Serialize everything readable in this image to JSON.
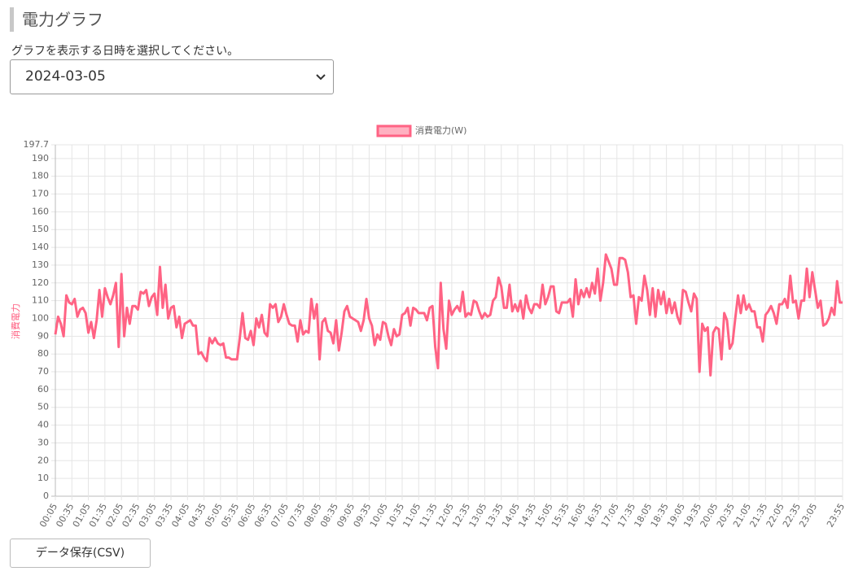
{
  "header": {
    "title": "電力グラフ"
  },
  "form": {
    "label": "グラフを表示する日時を選択してください。",
    "date": "2024-03-05"
  },
  "chart_data": {
    "type": "line",
    "y_label": "消費電力",
    "categories": [
      "00:05",
      null,
      null,
      null,
      null,
      null,
      "00:35",
      null,
      null,
      null,
      null,
      null,
      "01:05",
      null,
      null,
      null,
      null,
      null,
      "01:35",
      null,
      null,
      null,
      null,
      null,
      "02:05",
      null,
      null,
      null,
      null,
      null,
      "02:35",
      null,
      null,
      null,
      null,
      null,
      "03:05",
      null,
      null,
      null,
      null,
      null,
      "03:35",
      null,
      null,
      null,
      null,
      null,
      "04:05",
      null,
      null,
      null,
      null,
      null,
      "04:35",
      null,
      null,
      null,
      null,
      null,
      "05:05",
      null,
      null,
      null,
      null,
      null,
      "05:35",
      null,
      null,
      null,
      null,
      null,
      "06:05",
      null,
      null,
      null,
      null,
      null,
      "06:35",
      null,
      null,
      null,
      null,
      null,
      "07:05",
      null,
      null,
      null,
      null,
      null,
      "07:35",
      null,
      null,
      null,
      null,
      null,
      "08:05",
      null,
      null,
      null,
      null,
      null,
      "08:35",
      null,
      null,
      null,
      null,
      null,
      "09:05",
      null,
      null,
      null,
      null,
      null,
      "09:35",
      null,
      null,
      null,
      null,
      null,
      "10:05",
      null,
      null,
      null,
      null,
      null,
      "10:35",
      null,
      null,
      null,
      null,
      null,
      "11:05",
      null,
      null,
      null,
      null,
      null,
      "11:35",
      null,
      null,
      null,
      null,
      null,
      "12:05",
      null,
      null,
      null,
      null,
      null,
      "12:35",
      null,
      null,
      null,
      null,
      null,
      "13:05",
      null,
      null,
      null,
      null,
      null,
      "13:35",
      null,
      null,
      null,
      null,
      null,
      "14:05",
      null,
      null,
      null,
      null,
      null,
      "14:35",
      null,
      null,
      null,
      null,
      null,
      "15:05",
      null,
      null,
      null,
      null,
      null,
      "15:35",
      null,
      null,
      null,
      null,
      null,
      "16:05",
      null,
      null,
      null,
      null,
      null,
      "16:35",
      null,
      null,
      null,
      null,
      null,
      "17:05",
      null,
      null,
      null,
      null,
      null,
      "17:35",
      null,
      null,
      null,
      null,
      null,
      "18:05",
      null,
      null,
      null,
      null,
      null,
      "18:35",
      null,
      null,
      null,
      null,
      null,
      "19:05",
      null,
      null,
      null,
      null,
      null,
      "19:35",
      null,
      null,
      null,
      null,
      null,
      "20:05",
      null,
      null,
      null,
      null,
      null,
      "20:35",
      null,
      null,
      null,
      null,
      null,
      "21:05",
      null,
      null,
      null,
      null,
      null,
      "21:35",
      null,
      null,
      null,
      null,
      null,
      "22:05",
      null,
      null,
      null,
      null,
      null,
      "22:35",
      null,
      null,
      null,
      null,
      null,
      "23:05",
      null,
      null,
      null,
      null,
      null,
      null,
      null,
      null,
      null,
      "23:55"
    ],
    "series": [
      {
        "name": "消費電力(W)",
        "color": "#ff6384",
        "values": [
          91,
          101,
          97,
          90,
          113,
          109,
          108,
          111,
          101,
          105,
          106,
          103,
          92,
          98,
          89,
          99,
          116,
          101,
          117,
          112,
          108,
          113,
          120,
          84,
          125,
          90,
          106,
          97,
          107,
          107,
          105,
          115,
          114,
          116,
          107,
          112,
          114,
          102,
          129,
          106,
          119,
          100,
          106,
          107,
          95,
          101,
          89,
          97,
          98,
          99,
          96,
          96,
          80,
          81,
          78,
          76,
          89,
          86,
          89,
          86,
          85,
          86,
          78,
          78,
          77,
          77,
          77,
          89,
          103,
          89,
          88,
          93,
          85,
          100,
          95,
          102,
          92,
          90,
          108,
          106,
          108,
          98,
          101,
          108,
          102,
          97,
          96,
          96,
          87,
          99,
          91,
          93,
          92,
          111,
          100,
          108,
          77,
          98,
          100,
          93,
          92,
          86,
          99,
          82,
          92,
          104,
          107,
          101,
          100,
          99,
          98,
          93,
          99,
          111,
          100,
          96,
          85,
          91,
          88,
          98,
          97,
          90,
          85,
          94,
          90,
          91,
          102,
          103,
          106,
          96,
          106,
          105,
          103,
          103,
          103,
          99,
          106,
          107,
          84,
          72,
          120,
          94,
          83,
          110,
          102,
          105,
          107,
          104,
          115,
          101,
          103,
          102,
          110,
          109,
          104,
          100,
          103,
          101,
          102,
          110,
          112,
          123,
          118,
          106,
          106,
          119,
          104,
          108,
          104,
          110,
          100,
          113,
          106,
          103,
          108,
          108,
          106,
          119,
          108,
          112,
          118,
          118,
          104,
          103,
          109,
          109,
          109,
          111,
          101,
          122,
          108,
          116,
          112,
          117,
          112,
          120,
          114,
          128,
          110,
          120,
          136,
          132,
          128,
          119,
          119,
          134,
          134,
          133,
          126,
          112,
          113,
          97,
          112,
          110,
          124,
          116,
          102,
          117,
          101,
          116,
          108,
          115,
          103,
          111,
          103,
          109,
          101,
          97,
          116,
          115,
          109,
          104,
          114,
          111,
          70,
          97,
          93,
          95,
          68,
          92,
          95,
          94,
          77,
          103,
          99,
          83,
          86,
          100,
          113,
          103,
          113,
          105,
          108,
          104,
          104,
          95,
          95,
          87,
          102,
          104,
          107,
          103,
          97,
          108,
          108,
          111,
          106,
          124,
          109,
          110,
          100,
          110,
          110,
          128,
          112,
          126,
          116,
          106,
          110,
          96,
          97,
          100,
          106,
          102,
          121,
          109,
          109
        ]
      }
    ],
    "ylim": [
      0,
      197.7
    ],
    "yticks": [
      0,
      10,
      20,
      30,
      40,
      50,
      60,
      70,
      80,
      90,
      100,
      110,
      120,
      130,
      140,
      150,
      160,
      170,
      180,
      190,
      197.7
    ],
    "grid": true,
    "legend": "top"
  },
  "button": {
    "label": "データ保存(CSV)"
  }
}
